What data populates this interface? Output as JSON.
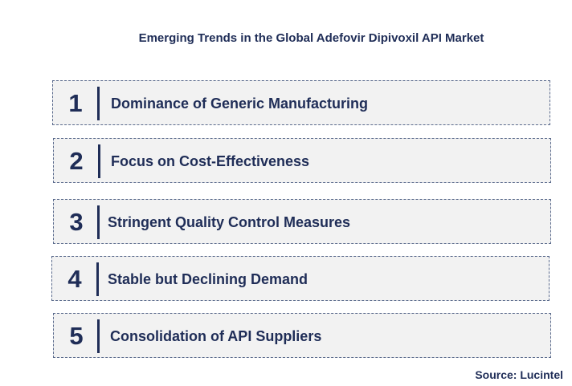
{
  "title": "Emerging Trends in the Global Adefovir Dipivoxil API Market",
  "trends": [
    {
      "number": "1",
      "label": "Dominance of Generic Manufacturing"
    },
    {
      "number": "2",
      "label": "Focus on Cost-Effectiveness"
    },
    {
      "number": "3",
      "label": "Stringent Quality Control Measures"
    },
    {
      "number": "4",
      "label": "Stable but Declining Demand"
    },
    {
      "number": "5",
      "label": "Consolidation of API Suppliers"
    }
  ],
  "source": "Source: Lucintel",
  "colors": {
    "text": "#1f2d57",
    "box_fill": "#f2f2f2",
    "box_border": "#5a6a8c"
  }
}
